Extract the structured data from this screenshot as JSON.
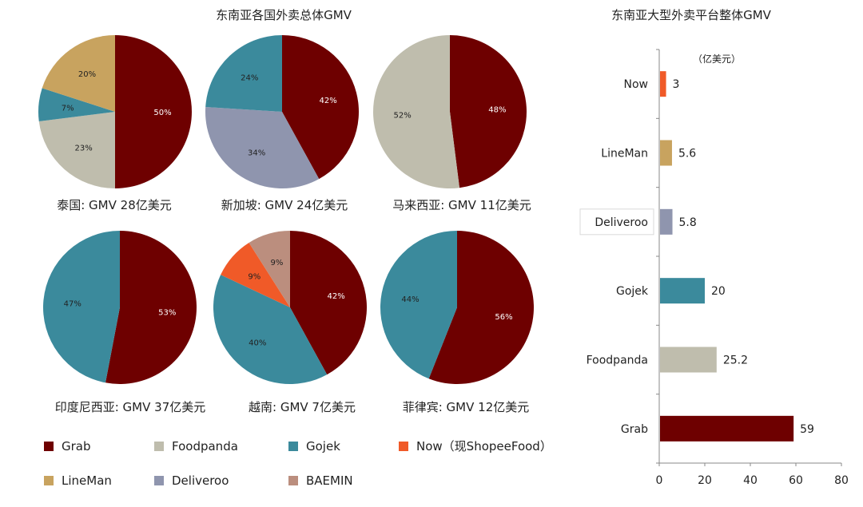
{
  "colors": {
    "Grab": "#6e0000",
    "Foodpanda": "#bfbdad",
    "Gojek": "#3b8a9c",
    "Now": "#f05a28",
    "LineMan": "#c8a35f",
    "Deliveroo": "#8f95ae",
    "BAEMIN": "#bb8e7e"
  },
  "chart_data": [
    {
      "type": "pie",
      "title": "东南亚各国外卖总体GMV",
      "pies": [
        {
          "caption": "泰国: GMV 28亿美元",
          "slices": [
            {
              "name": "Grab",
              "value": 50,
              "label": "50%"
            },
            {
              "name": "Foodpanda",
              "value": 23,
              "label": "23%"
            },
            {
              "name": "Gojek",
              "value": 7,
              "label": "7%"
            },
            {
              "name": "LineMan",
              "value": 20,
              "label": "20%"
            }
          ]
        },
        {
          "caption": "新加坡: GMV 24亿美元",
          "slices": [
            {
              "name": "Grab",
              "value": 42,
              "label": "42%"
            },
            {
              "name": "Deliveroo",
              "value": 34,
              "label": "34%"
            },
            {
              "name": "Gojek",
              "value": 24,
              "label": "24%"
            }
          ]
        },
        {
          "caption": "马来西亚: GMV 11亿美元",
          "slices": [
            {
              "name": "Grab",
              "value": 48,
              "label": "48%"
            },
            {
              "name": "Foodpanda",
              "value": 52,
              "label": "52%"
            }
          ]
        },
        {
          "caption": "印度尼西亚: GMV 37亿美元",
          "slices": [
            {
              "name": "Grab",
              "value": 53,
              "label": "53%"
            },
            {
              "name": "Gojek",
              "value": 47,
              "label": "47%"
            }
          ]
        },
        {
          "caption": "越南: GMV 7亿美元",
          "slices": [
            {
              "name": "Grab",
              "value": 42,
              "label": "42%"
            },
            {
              "name": "Gojek",
              "value": 40,
              "label": "40%"
            },
            {
              "name": "Now",
              "value": 9,
              "label": "9%"
            },
            {
              "name": "BAEMIN",
              "value": 9,
              "label": "9%"
            }
          ]
        },
        {
          "caption": "菲律宾: GMV 12亿美元",
          "slices": [
            {
              "name": "Grab",
              "value": 56,
              "label": "56%"
            },
            {
              "name": "Gojek",
              "value": 44,
              "label": "44%"
            }
          ]
        }
      ],
      "legend": [
        {
          "name": "Grab",
          "label": "Grab"
        },
        {
          "name": "Foodpanda",
          "label": "Foodpanda"
        },
        {
          "name": "Gojek",
          "label": "Gojek"
        },
        {
          "name": "Now",
          "label": "Now（现ShopeeFood）"
        },
        {
          "name": "LineMan",
          "label": "LineMan"
        },
        {
          "name": "Deliveroo",
          "label": "Deliveroo"
        },
        {
          "name": "BAEMIN",
          "label": "BAEMIN"
        }
      ]
    },
    {
      "type": "bar",
      "orientation": "horizontal",
      "title": "东南亚大型外卖平台整体GMV",
      "unit_label": "（亿美元）",
      "categories": [
        "Now",
        "LineMan",
        "Deliveroo",
        "Gojek",
        "Foodpanda",
        "Grab"
      ],
      "values": [
        3,
        5.6,
        5.8,
        20,
        25.2,
        59
      ],
      "value_labels": [
        "3",
        "5.6",
        "5.8",
        "20",
        "25.2",
        "59"
      ],
      "xlim": [
        0,
        80
      ],
      "xticks": [
        "0",
        "20",
        "40",
        "60",
        "80"
      ]
    }
  ]
}
